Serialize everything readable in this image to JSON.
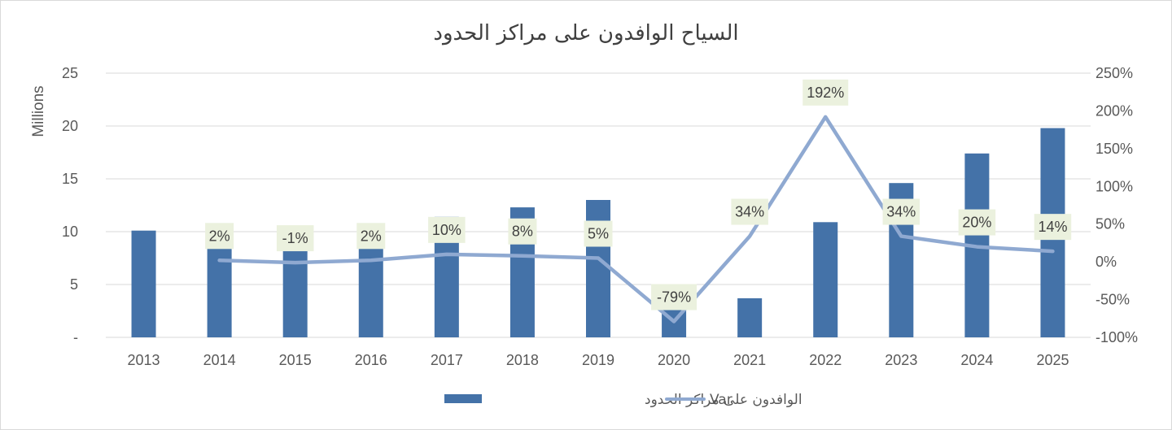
{
  "chart_data": {
    "type": "bar",
    "title": "السياح الوافدون على مراكز الحدود",
    "categories": [
      "2013",
      "2014",
      "2015",
      "2016",
      "2017",
      "2018",
      "2019",
      "2020",
      "2021",
      "2022",
      "2023",
      "2024",
      "2025"
    ],
    "series": [
      {
        "name": "الوافدون على مراكز الحدود",
        "type": "bar",
        "axis": "left",
        "color": "#4472a8",
        "values": [
          10.1,
          10.3,
          10.2,
          10.4,
          11.4,
          12.3,
          13.0,
          2.7,
          3.7,
          10.9,
          14.6,
          17.4,
          19.8
        ]
      },
      {
        "name": "Var",
        "type": "line",
        "axis": "right",
        "color": "#8fa9d1",
        "values": [
          null,
          2,
          -1,
          2,
          10,
          8,
          5,
          -79,
          34,
          192,
          34,
          20,
          14
        ],
        "labels": [
          "",
          "2%",
          "-1%",
          "2%",
          "10%",
          "8%",
          "5%",
          "-79%",
          "34%",
          "192%",
          "34%",
          "20%",
          "14%"
        ],
        "label_bg": "#ebf1de"
      }
    ],
    "y_left": {
      "label": "Millions",
      "ylim": [
        0,
        25
      ],
      "ticks": [
        0,
        5,
        10,
        15,
        20,
        25
      ],
      "tick_labels": [
        "-",
        "5",
        "10",
        "15",
        "20",
        "25"
      ]
    },
    "y_right": {
      "ylim": [
        -100,
        250
      ],
      "ticks": [
        -100,
        -50,
        0,
        50,
        100,
        150,
        200,
        250
      ],
      "tick_labels": [
        "-100%",
        "-50%",
        "0%",
        "50%",
        "100%",
        "150%",
        "200%",
        "250%"
      ]
    },
    "grid": true,
    "legend_position": "bottom"
  }
}
